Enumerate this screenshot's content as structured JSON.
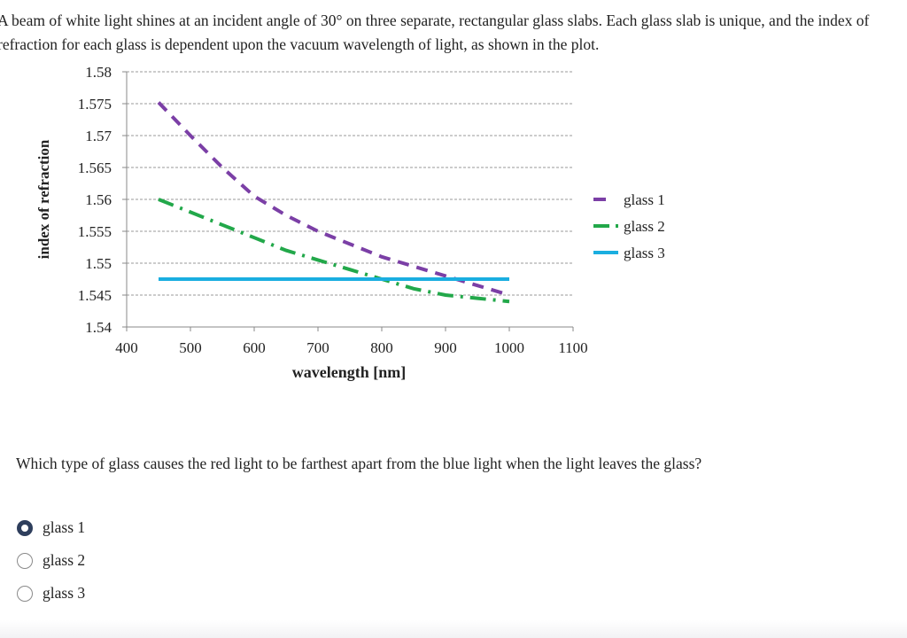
{
  "intro_text": "A beam of white light shines at an incident angle of 30° on three separate, rectangular glass slabs. Each glass slab is unique, and the index of refraction for each glass is dependent upon the vacuum wavelength of light, as shown in the plot.",
  "question_text": "Which type of glass causes the red light to be farthest apart from the blue light when the light leaves the glass?",
  "options": [
    {
      "label": "glass 1",
      "selected": true
    },
    {
      "label": "glass 2",
      "selected": false
    },
    {
      "label": "glass 3",
      "selected": false
    }
  ],
  "chart_data": {
    "type": "line",
    "title": "",
    "xlabel": "wavelength [nm]",
    "ylabel": "index of refraction",
    "xlim": [
      400,
      1100
    ],
    "ylim": [
      1.54,
      1.58
    ],
    "xticks": [
      "400",
      "500",
      "600",
      "700",
      "800",
      "900",
      "1000",
      "1100"
    ],
    "yticks": [
      "1.54",
      "1.545",
      "1.55",
      "1.555",
      "1.56",
      "1.565",
      "1.57",
      "1.575",
      "1.58"
    ],
    "grid": "horizontal dashed",
    "legend_position": "right",
    "series": [
      {
        "name": "glass 1",
        "color": "#7b3fa6",
        "style": "dashed",
        "x": [
          450,
          500,
          550,
          600,
          650,
          700,
          750,
          800,
          850,
          900,
          950,
          1000
        ],
        "y": [
          1.5752,
          1.57,
          1.565,
          1.5605,
          1.5575,
          1.555,
          1.553,
          1.551,
          1.5495,
          1.548,
          1.5465,
          1.545
        ]
      },
      {
        "name": "glass 2",
        "color": "#22a84a",
        "style": "dashdot",
        "x": [
          450,
          500,
          550,
          600,
          650,
          700,
          750,
          800,
          850,
          900,
          950,
          1000
        ],
        "y": [
          1.56,
          1.558,
          1.556,
          1.554,
          1.552,
          1.5505,
          1.549,
          1.5475,
          1.546,
          1.545,
          1.5445,
          1.544
        ]
      },
      {
        "name": "glass 3",
        "color": "#1aaee0",
        "style": "solid",
        "x": [
          450,
          1000
        ],
        "y": [
          1.5475,
          1.5475
        ]
      }
    ]
  }
}
